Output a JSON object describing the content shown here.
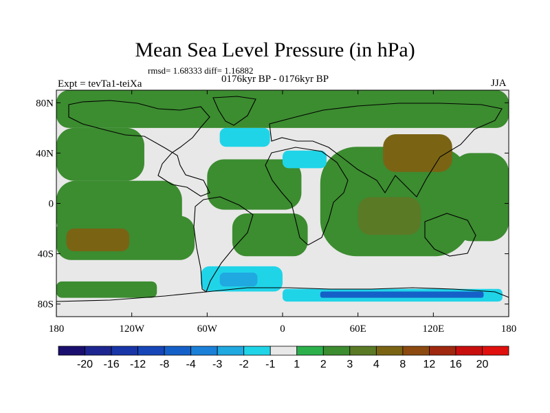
{
  "chart_data": {
    "type": "heatmap",
    "title": "Mean Sea Level Pressure (in hPa)",
    "stats": "rmsd= 1.68333 diff= 1.16882",
    "period": "0176kyr BP - 0176kyr BP",
    "experiment": "Expt = tevTa1-teiXa",
    "season": "JJA",
    "x_ticks": [
      "180",
      "120W",
      "60W",
      "0",
      "60E",
      "120E",
      "180"
    ],
    "x_tick_values": [
      -180,
      -120,
      -60,
      0,
      60,
      120,
      180
    ],
    "y_ticks": [
      "80N",
      "40N",
      "0",
      "40S",
      "80S"
    ],
    "y_tick_values": [
      80,
      40,
      0,
      -40,
      -80
    ],
    "xlim": [
      -180,
      180
    ],
    "ylim": [
      -90,
      90
    ],
    "colorbar": {
      "labels": [
        "-20",
        "-16",
        "-12",
        "-8",
        "-4",
        "-3",
        "-2",
        "-1",
        "1",
        "2",
        "3",
        "4",
        "8",
        "12",
        "16",
        "20"
      ],
      "colors": [
        "#1a0f6e",
        "#1c2590",
        "#1836a8",
        "#1646b8",
        "#1560c8",
        "#1a80d8",
        "#20a8e0",
        "#20d4e8",
        "#e8e8e8",
        "#2cb04c",
        "#3c8c30",
        "#5a7a26",
        "#7a6414",
        "#8c4a10",
        "#a0280e",
        "#c80f0e",
        "#e0100e"
      ]
    },
    "regions": [
      {
        "label": "Arctic band",
        "x0": -180,
        "x1": 180,
        "y0": 60,
        "y1": 90,
        "level": "2"
      },
      {
        "label": "North Pacific west",
        "x0": -180,
        "x1": -110,
        "y0": 18,
        "y1": 60,
        "level": "2"
      },
      {
        "label": "Eastern Pacific",
        "x0": -180,
        "x1": -80,
        "y0": -28,
        "y1": 18,
        "level": "2"
      },
      {
        "label": "South Pacific high",
        "x0": -180,
        "x1": -70,
        "y0": -45,
        "y1": -10,
        "level": "2"
      },
      {
        "label": "South Pacific core",
        "x0": -172,
        "x1": -122,
        "y0": -38,
        "y1": -20,
        "level": "4"
      },
      {
        "label": "Tropical Atlantic",
        "x0": -60,
        "x1": 15,
        "y0": -5,
        "y1": 35,
        "level": "2"
      },
      {
        "label": "South Atlantic",
        "x0": -40,
        "x1": 20,
        "y0": -42,
        "y1": -8,
        "level": "2"
      },
      {
        "label": "Indian Ocean and Asia",
        "x0": 30,
        "x1": 150,
        "y0": -42,
        "y1": 45,
        "level": "2"
      },
      {
        "label": "Asia core",
        "x0": 80,
        "x1": 135,
        "y0": 25,
        "y1": 55,
        "level": "4"
      },
      {
        "label": "Indian Ocean core",
        "x0": 60,
        "x1": 110,
        "y0": -25,
        "y1": 5,
        "level": "3"
      },
      {
        "label": "Western Pacific",
        "x0": 135,
        "x1": 180,
        "y0": -30,
        "y1": 40,
        "level": "2"
      },
      {
        "label": "Mediterranean low",
        "x0": 0,
        "x1": 35,
        "y0": 28,
        "y1": 42,
        "level": "-2"
      },
      {
        "label": "North Atlantic low",
        "x0": -50,
        "x1": -10,
        "y0": 45,
        "y1": 60,
        "level": "-2"
      },
      {
        "label": "South Atlantic low",
        "x0": -65,
        "x1": 0,
        "y0": -70,
        "y1": -50,
        "level": "-2"
      },
      {
        "label": "South Atlantic low core",
        "x0": -50,
        "x1": -20,
        "y0": -66,
        "y1": -55,
        "level": "-3"
      },
      {
        "label": "Antarctic coastal band",
        "x0": 0,
        "x1": 175,
        "y0": -78,
        "y1": -68,
        "level": "-2"
      },
      {
        "label": "Antarctic coastal core",
        "x0": 30,
        "x1": 160,
        "y0": -75,
        "y1": -70,
        "level": "-8"
      },
      {
        "label": "South Pacific high-latitude",
        "x0": -180,
        "x1": -100,
        "y0": -75,
        "y1": -62,
        "level": "2"
      }
    ]
  }
}
